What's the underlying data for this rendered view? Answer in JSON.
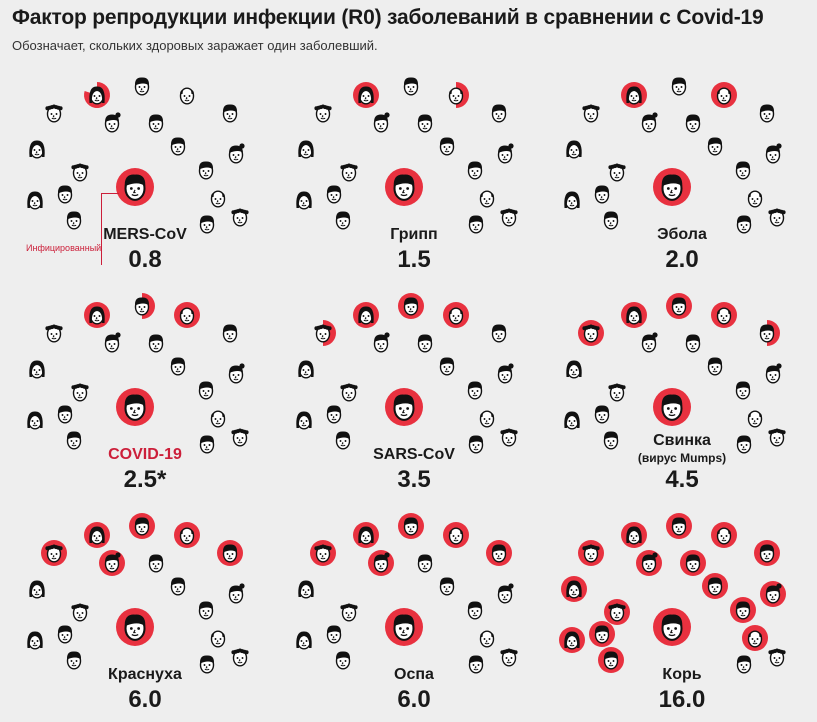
{
  "title": "Фактор репродукции инфекции (R0) заболеваний в сравнении с Covid-19",
  "subtitle": "Обозначает, скольких здоровых заражает один заболевший.",
  "infected_label": "Инфицированный",
  "colors": {
    "accent": "#e8313f",
    "highlight_text": "#cc1f3a",
    "face": "#111111",
    "background": "#eeeeee"
  },
  "chart_data": {
    "type": "bar",
    "categories": [
      "MERS-CoV",
      "Грипп",
      "Эбола",
      "COVID-19",
      "SARS-CoV",
      "Свинка",
      "Краснуха",
      "Оспа",
      "Корь"
    ],
    "values": [
      0.8,
      1.5,
      2.0,
      2.5,
      3.5,
      4.5,
      6.0,
      6.0,
      16.0
    ],
    "value_labels": [
      "0.8",
      "1.5",
      "2.0",
      "2.5*",
      "3.5",
      "4.5",
      "6.0",
      "6.0",
      "16.0"
    ],
    "notes": [
      "",
      "",
      "",
      "",
      "",
      "(вирус Mumps)",
      "",
      "",
      ""
    ],
    "highlight": "COVID-19"
  }
}
